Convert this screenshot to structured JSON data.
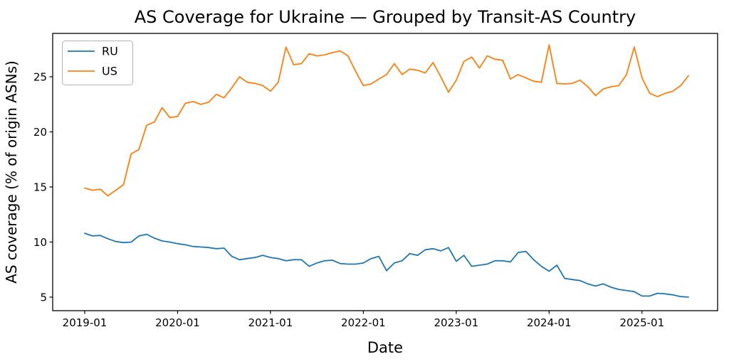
{
  "chart_data": {
    "type": "line",
    "title": "AS Coverage for Ukraine — Grouped by Transit-AS Country",
    "xlabel": "Date",
    "ylabel": "AS coverage (% of origin ASNs)",
    "legend_position": "upper left",
    "grid": false,
    "background": "#ffffff",
    "axis_color": "#000000",
    "ylim": [
      3.77,
      28.94
    ],
    "xlim_index": [
      -4.14,
      81.77
    ],
    "yticks": [
      5,
      10,
      15,
      20,
      25
    ],
    "xtick_labels": [
      "2019-01",
      "2020-01",
      "2021-01",
      "2022-01",
      "2023-01",
      "2024-01",
      "2025-01"
    ],
    "x": [
      "2019-01",
      "2019-02",
      "2019-03",
      "2019-04",
      "2019-05",
      "2019-06",
      "2019-07",
      "2019-08",
      "2019-09",
      "2019-10",
      "2019-11",
      "2019-12",
      "2020-01",
      "2020-02",
      "2020-03",
      "2020-04",
      "2020-05",
      "2020-06",
      "2020-07",
      "2020-08",
      "2020-09",
      "2020-10",
      "2020-11",
      "2020-12",
      "2021-01",
      "2021-02",
      "2021-03",
      "2021-04",
      "2021-05",
      "2021-06",
      "2021-07",
      "2021-08",
      "2021-09",
      "2021-10",
      "2021-11",
      "2021-12",
      "2022-01",
      "2022-02",
      "2022-03",
      "2022-04",
      "2022-05",
      "2022-06",
      "2022-07",
      "2022-08",
      "2022-09",
      "2022-10",
      "2022-11",
      "2022-12",
      "2023-01",
      "2023-02",
      "2023-03",
      "2023-04",
      "2023-05",
      "2023-06",
      "2023-07",
      "2023-08",
      "2023-09",
      "2023-10",
      "2023-11",
      "2023-12",
      "2024-01",
      "2024-02",
      "2024-03",
      "2024-04",
      "2024-05",
      "2024-06",
      "2024-07",
      "2024-08",
      "2024-09",
      "2024-10",
      "2024-11",
      "2024-12",
      "2025-01",
      "2025-02",
      "2025-03",
      "2025-04",
      "2025-05",
      "2025-06",
      "2025-07"
    ],
    "series": [
      {
        "name": "RU",
        "color": "#1f77b4",
        "values": [
          10.8,
          10.55,
          10.6,
          10.3,
          10.05,
          9.95,
          10.0,
          10.55,
          10.7,
          10.35,
          10.1,
          10.0,
          9.85,
          9.75,
          9.6,
          9.55,
          9.5,
          9.4,
          9.45,
          8.7,
          8.4,
          8.5,
          8.6,
          8.8,
          8.6,
          8.5,
          8.3,
          8.4,
          8.4,
          7.8,
          8.1,
          8.3,
          8.35,
          8.05,
          8.0,
          8.0,
          8.1,
          8.5,
          8.7,
          7.4,
          8.1,
          8.3,
          8.95,
          8.8,
          9.3,
          9.4,
          9.2,
          9.5,
          8.25,
          8.8,
          7.8,
          7.9,
          8.0,
          8.3,
          8.3,
          8.2,
          9.05,
          9.15,
          8.4,
          7.8,
          7.35,
          7.9,
          6.7,
          6.6,
          6.5,
          6.2,
          6.0,
          6.2,
          5.9,
          5.7,
          5.6,
          5.5,
          5.1,
          5.1,
          5.35,
          5.3,
          5.2,
          5.05,
          5.0
        ]
      },
      {
        "name": "US",
        "color": "#ff7f0e",
        "values": [
          14.9,
          14.7,
          14.8,
          14.2,
          14.7,
          15.2,
          18.0,
          18.4,
          20.6,
          20.9,
          22.2,
          21.3,
          21.4,
          22.6,
          22.75,
          22.5,
          22.7,
          23.4,
          23.1,
          24.0,
          25.0,
          24.5,
          24.4,
          24.2,
          23.7,
          24.5,
          27.7,
          26.1,
          26.2,
          27.1,
          26.9,
          27.0,
          27.2,
          27.35,
          26.9,
          25.5,
          24.2,
          24.35,
          24.8,
          25.2,
          26.2,
          25.2,
          25.7,
          25.6,
          25.35,
          26.3,
          25.0,
          23.6,
          24.7,
          26.4,
          26.8,
          25.8,
          26.9,
          26.6,
          26.5,
          24.8,
          25.2,
          24.9,
          24.6,
          24.5,
          27.9,
          24.4,
          24.35,
          24.4,
          24.7,
          24.1,
          23.3,
          23.9,
          24.1,
          24.2,
          25.2,
          27.7,
          24.9,
          23.5,
          23.2,
          23.5,
          23.7,
          24.2,
          25.1
        ]
      }
    ]
  }
}
